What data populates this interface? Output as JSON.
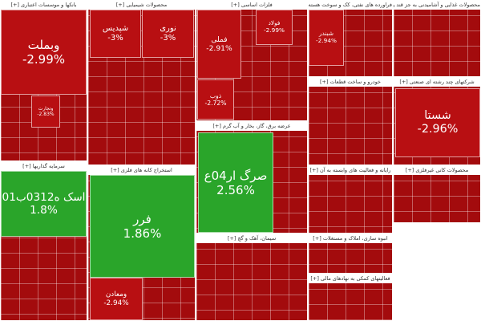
{
  "chart_data": {
    "type": "treemap",
    "sectors": [
      {
        "name": "بانکها و موسسات اعتباری [+]",
        "tiles": [
          {
            "name": "وبملت",
            "value": -2.99,
            "value_label": "-2.99%"
          },
          {
            "name": "وتجارت",
            "value": -2.83,
            "value_label": "-2.83%"
          }
        ]
      },
      {
        "name": "محصولات شیمیایی [+]",
        "tiles": [
          {
            "name": "شپدیس",
            "value": -3,
            "value_label": "-3%"
          },
          {
            "name": "نوری",
            "value": -3,
            "value_label": "-3%"
          }
        ]
      },
      {
        "name": "فلزات اساسی [+]",
        "tiles": [
          {
            "name": "فملی",
            "value": -2.91,
            "value_label": "-2.91%"
          },
          {
            "name": "فولاد",
            "value": -2.99,
            "value_label": "-2.99%"
          },
          {
            "name": "ذوب",
            "value": -2.72,
            "value_label": "-2.72%"
          }
        ]
      },
      {
        "name": "فراورده های نفتی، کک و سوخت هسته ای [+]",
        "tiles": [
          {
            "name": "شبندر",
            "value": -2.94,
            "value_label": "-2.94%"
          }
        ]
      },
      {
        "name": "محصولات غذایی و آشامیدنی به جز قند و شکر [+]",
        "tiles": []
      },
      {
        "name": "عرضه برق، گاز، بخار و آب گرم [+]",
        "tiles": [
          {
            "name": "صرگ ار04ع",
            "value": 2.56,
            "value_label": "2.56%"
          }
        ]
      },
      {
        "name": "خودرو و ساخت قطعات [+]",
        "tiles": []
      },
      {
        "name": "شرکتهای چند رشته ای صنعتی [+]",
        "tiles": [
          {
            "name": "شستا",
            "value": -2.96,
            "value_label": "-2.96%"
          }
        ]
      },
      {
        "name": "سرمایه گذاریها [+]",
        "tiles": [
          {
            "name": "اسک ه0312ب01",
            "value": 1.8,
            "value_label": "1.8%"
          }
        ]
      },
      {
        "name": "استخراج کانه های فلزی [+]",
        "tiles": [
          {
            "name": "فرر",
            "value": 1.86,
            "value_label": "1.86%"
          },
          {
            "name": "ومعادن",
            "value": -2.94,
            "value_label": "-2.94%"
          }
        ]
      },
      {
        "name": "سیمان، آهک و گچ [+]",
        "tiles": []
      },
      {
        "name": "رایانه و فعالیت های وابسته به آن [+]",
        "tiles": []
      },
      {
        "name": "انبوه سازی، املاک و مستغلات [+]",
        "tiles": []
      },
      {
        "name": "فعالیتهای کمکی به نهادهای مالی [+]",
        "tiles": []
      },
      {
        "name": "محصولات کانی غیرفلزی [+]",
        "tiles": []
      }
    ]
  }
}
